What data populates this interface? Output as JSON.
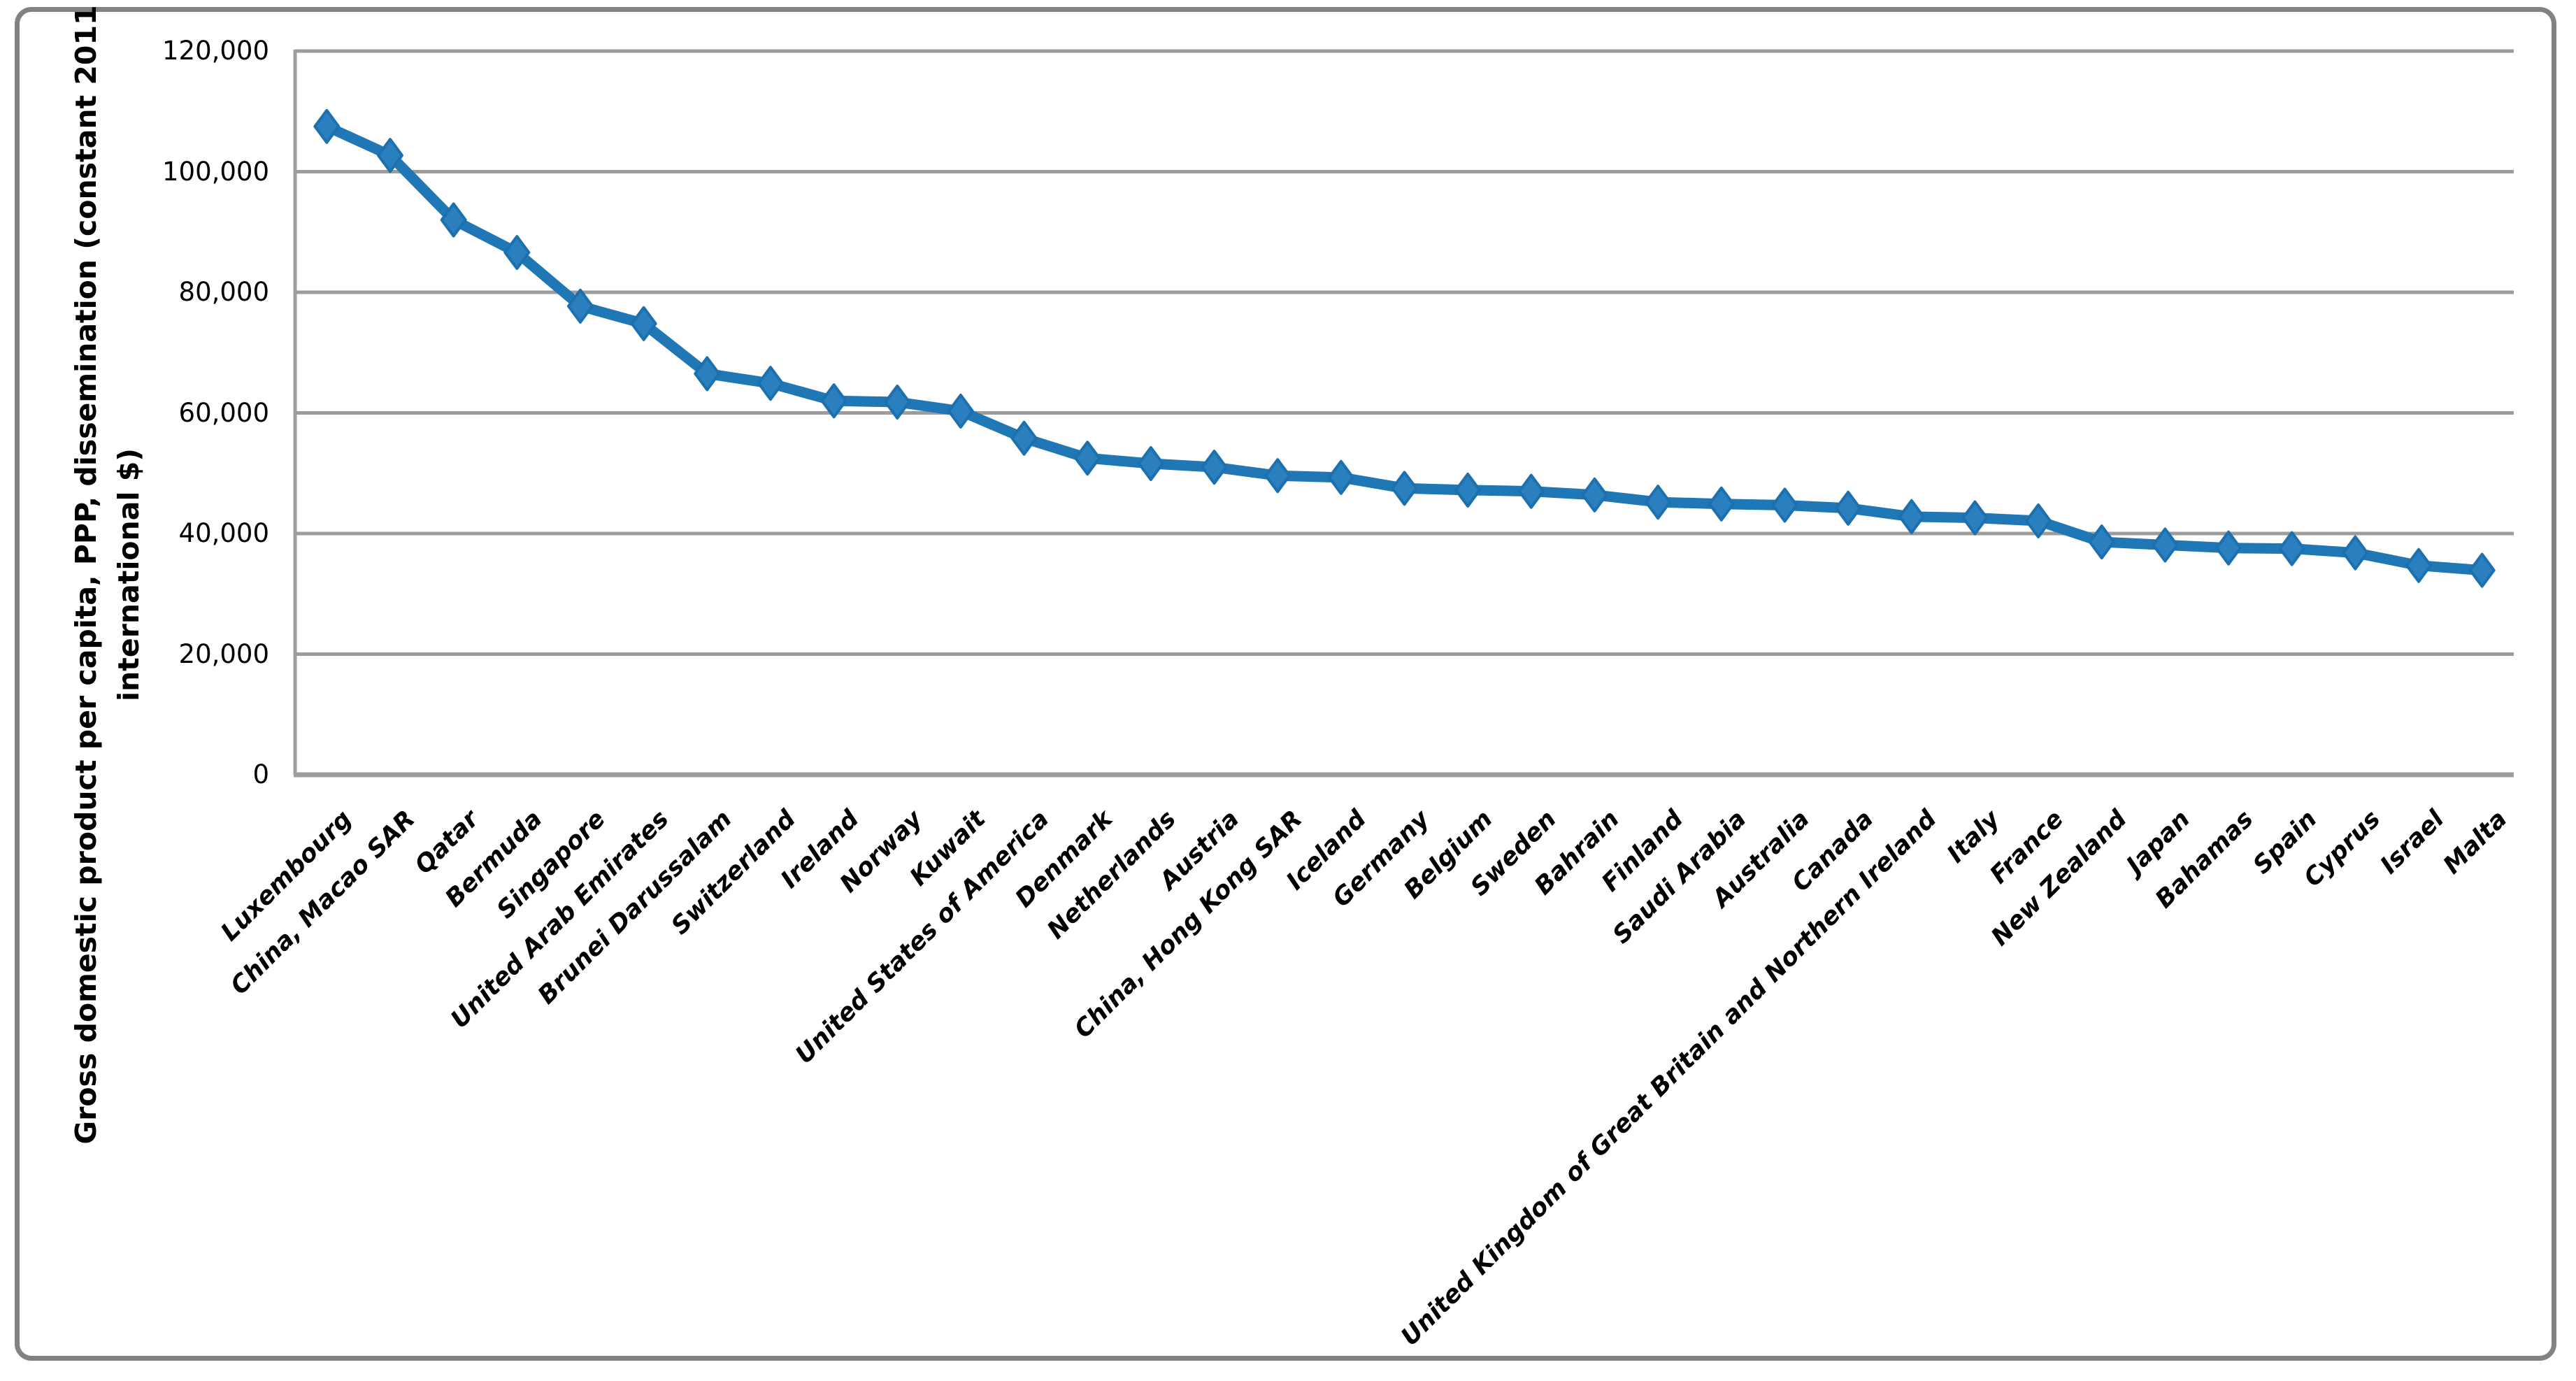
{
  "figure": {
    "background": "#FFFFFF",
    "border_color": "#828282",
    "gridline_color": "#9C9C9C",
    "axis_line_color": "#9C9C9C"
  },
  "chart_data": {
    "type": "line",
    "title": "",
    "xlabel": "",
    "ylabel": "Gross domestic product per capita, PPP, dissemination (constant 2011 international $)",
    "ylabel_lines": [
      "Gross domestic product per capita, PPP, dissemination (constant 2011",
      "international $)"
    ],
    "ylim": [
      0,
      120000
    ],
    "ytick_step": 20000,
    "yticks": [
      "0",
      "20,000",
      "40,000",
      "60,000",
      "80,000",
      "100,000",
      "120,000"
    ],
    "grid": "horizontal",
    "legend_position": "none",
    "marker": "diamond",
    "series_color": "#1F77B6",
    "marker_fill": "#2A80BF",
    "marker_edge": "#1C70AE",
    "categories": [
      "Luxembourg",
      "China, Macao SAR",
      "Qatar",
      "Bermuda",
      "Singapore",
      "United Arab Emirates",
      "Brunei Darussalam",
      "Switzerland",
      "Ireland",
      "Norway",
      "Kuwait",
      "United States of America",
      "Denmark",
      "Netherlands",
      "Austria",
      "China, Hong Kong SAR",
      "Iceland",
      "Germany",
      "Belgium",
      "Sweden",
      "Bahrain",
      "Finland",
      "Saudi Arabia",
      "Australia",
      "Canada",
      "United Kingdom of Great Britain and Northern Ireland",
      "Italy",
      "France",
      "New Zealand",
      "Japan",
      "Bahamas",
      "Spain",
      "Cyprus",
      "Israel",
      "Malta"
    ],
    "values": [
      107500,
      102700,
      92000,
      86600,
      77700,
      74800,
      66500,
      64900,
      62000,
      61800,
      60300,
      55800,
      52500,
      51600,
      51000,
      49600,
      49300,
      47500,
      47200,
      47000,
      46400,
      45200,
      44900,
      44700,
      44200,
      42800,
      42600,
      42100,
      38600,
      38100,
      37600,
      37500,
      36800,
      34700,
      33900
    ]
  }
}
